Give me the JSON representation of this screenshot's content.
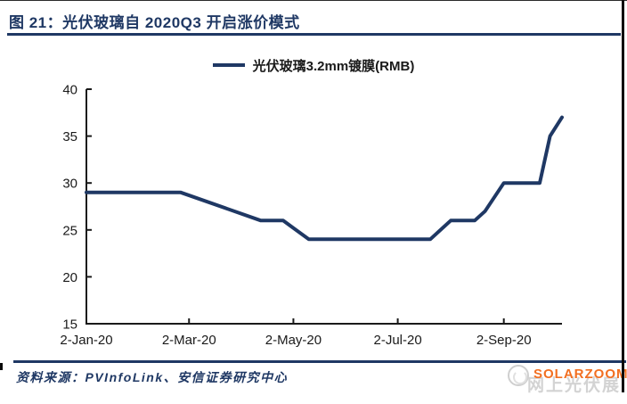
{
  "figure": {
    "title": "图 21：光伏玻璃自 2020Q3 开启涨价模式",
    "source": "资料来源：PVInfoLink、安信证券研究中心"
  },
  "colors": {
    "navy": "#1f3864",
    "axis": "#1a1a1a",
    "watermark_orange": "#f26f21",
    "watermark_gray": "#d3d3d3"
  },
  "watermark": {
    "logo": "circular-swirl-logo",
    "orange_text": "SOLARZOOM",
    "gray_text": "网上光伏展"
  },
  "chart_data": {
    "type": "line",
    "title": "",
    "legend_position": "top-center",
    "grid": false,
    "ylim": [
      15,
      40
    ],
    "y_ticks": [
      15,
      20,
      25,
      30,
      35,
      40
    ],
    "x_ticks": [
      "2-Jan-20",
      "2-Mar-20",
      "2-May-20",
      "2-Jul-20",
      "2-Sep-20"
    ],
    "x_tick_days": [
      0,
      60,
      121,
      182,
      244
    ],
    "x_domain_days": [
      0,
      278
    ],
    "series": [
      {
        "name": "光伏玻璃3.2mm镀膜(RMB)",
        "color": "#1f3864",
        "points": [
          {
            "date": "2-Jan-20",
            "day": 0,
            "value": 29
          },
          {
            "date": "26-Feb-20",
            "day": 55,
            "value": 29
          },
          {
            "date": "13-Apr-20",
            "day": 102,
            "value": 26
          },
          {
            "date": "26-Apr-20",
            "day": 115,
            "value": 26
          },
          {
            "date": "11-May-20",
            "day": 130,
            "value": 24
          },
          {
            "date": "21-Jul-20",
            "day": 201,
            "value": 24
          },
          {
            "date": "2-Aug-20",
            "day": 213,
            "value": 26
          },
          {
            "date": "16-Aug-20",
            "day": 227,
            "value": 26
          },
          {
            "date": "22-Aug-20",
            "day": 233,
            "value": 27
          },
          {
            "date": "2-Sep-20",
            "day": 244,
            "value": 30
          },
          {
            "date": "23-Sep-20",
            "day": 265,
            "value": 30
          },
          {
            "date": "29-Sep-20",
            "day": 271,
            "value": 35
          },
          {
            "date": "6-Oct-20",
            "day": 278,
            "value": 37
          }
        ]
      }
    ]
  }
}
